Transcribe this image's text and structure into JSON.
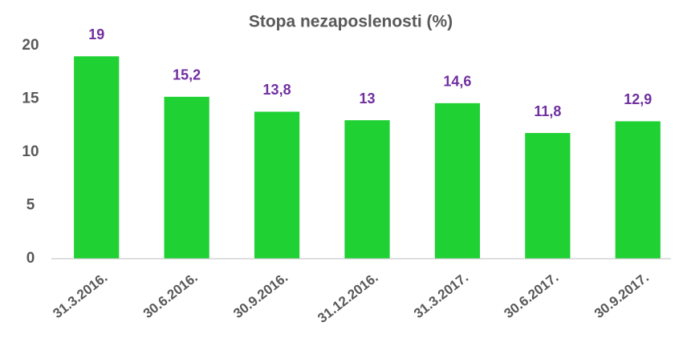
{
  "chart_data": {
    "type": "bar",
    "title": "Stopa nezaposlenosti (%)",
    "categories": [
      "31.3.2016.",
      "30.6.2016.",
      "30.9.2016.",
      "31.12.2016.",
      "31.3.2017.",
      "30.6.2017.",
      "30.9.2017."
    ],
    "values": [
      19,
      15.2,
      13.8,
      13,
      14.6,
      11.8,
      12.9
    ],
    "value_labels": [
      "19",
      "15,2",
      "13,8",
      "13",
      "14,6",
      "11,8",
      "12,9"
    ],
    "color": "#1fd133",
    "label_color": "#7030a0",
    "ylim": [
      0,
      20
    ],
    "yticks": [
      0,
      5,
      10,
      15,
      20
    ],
    "grid": false
  }
}
